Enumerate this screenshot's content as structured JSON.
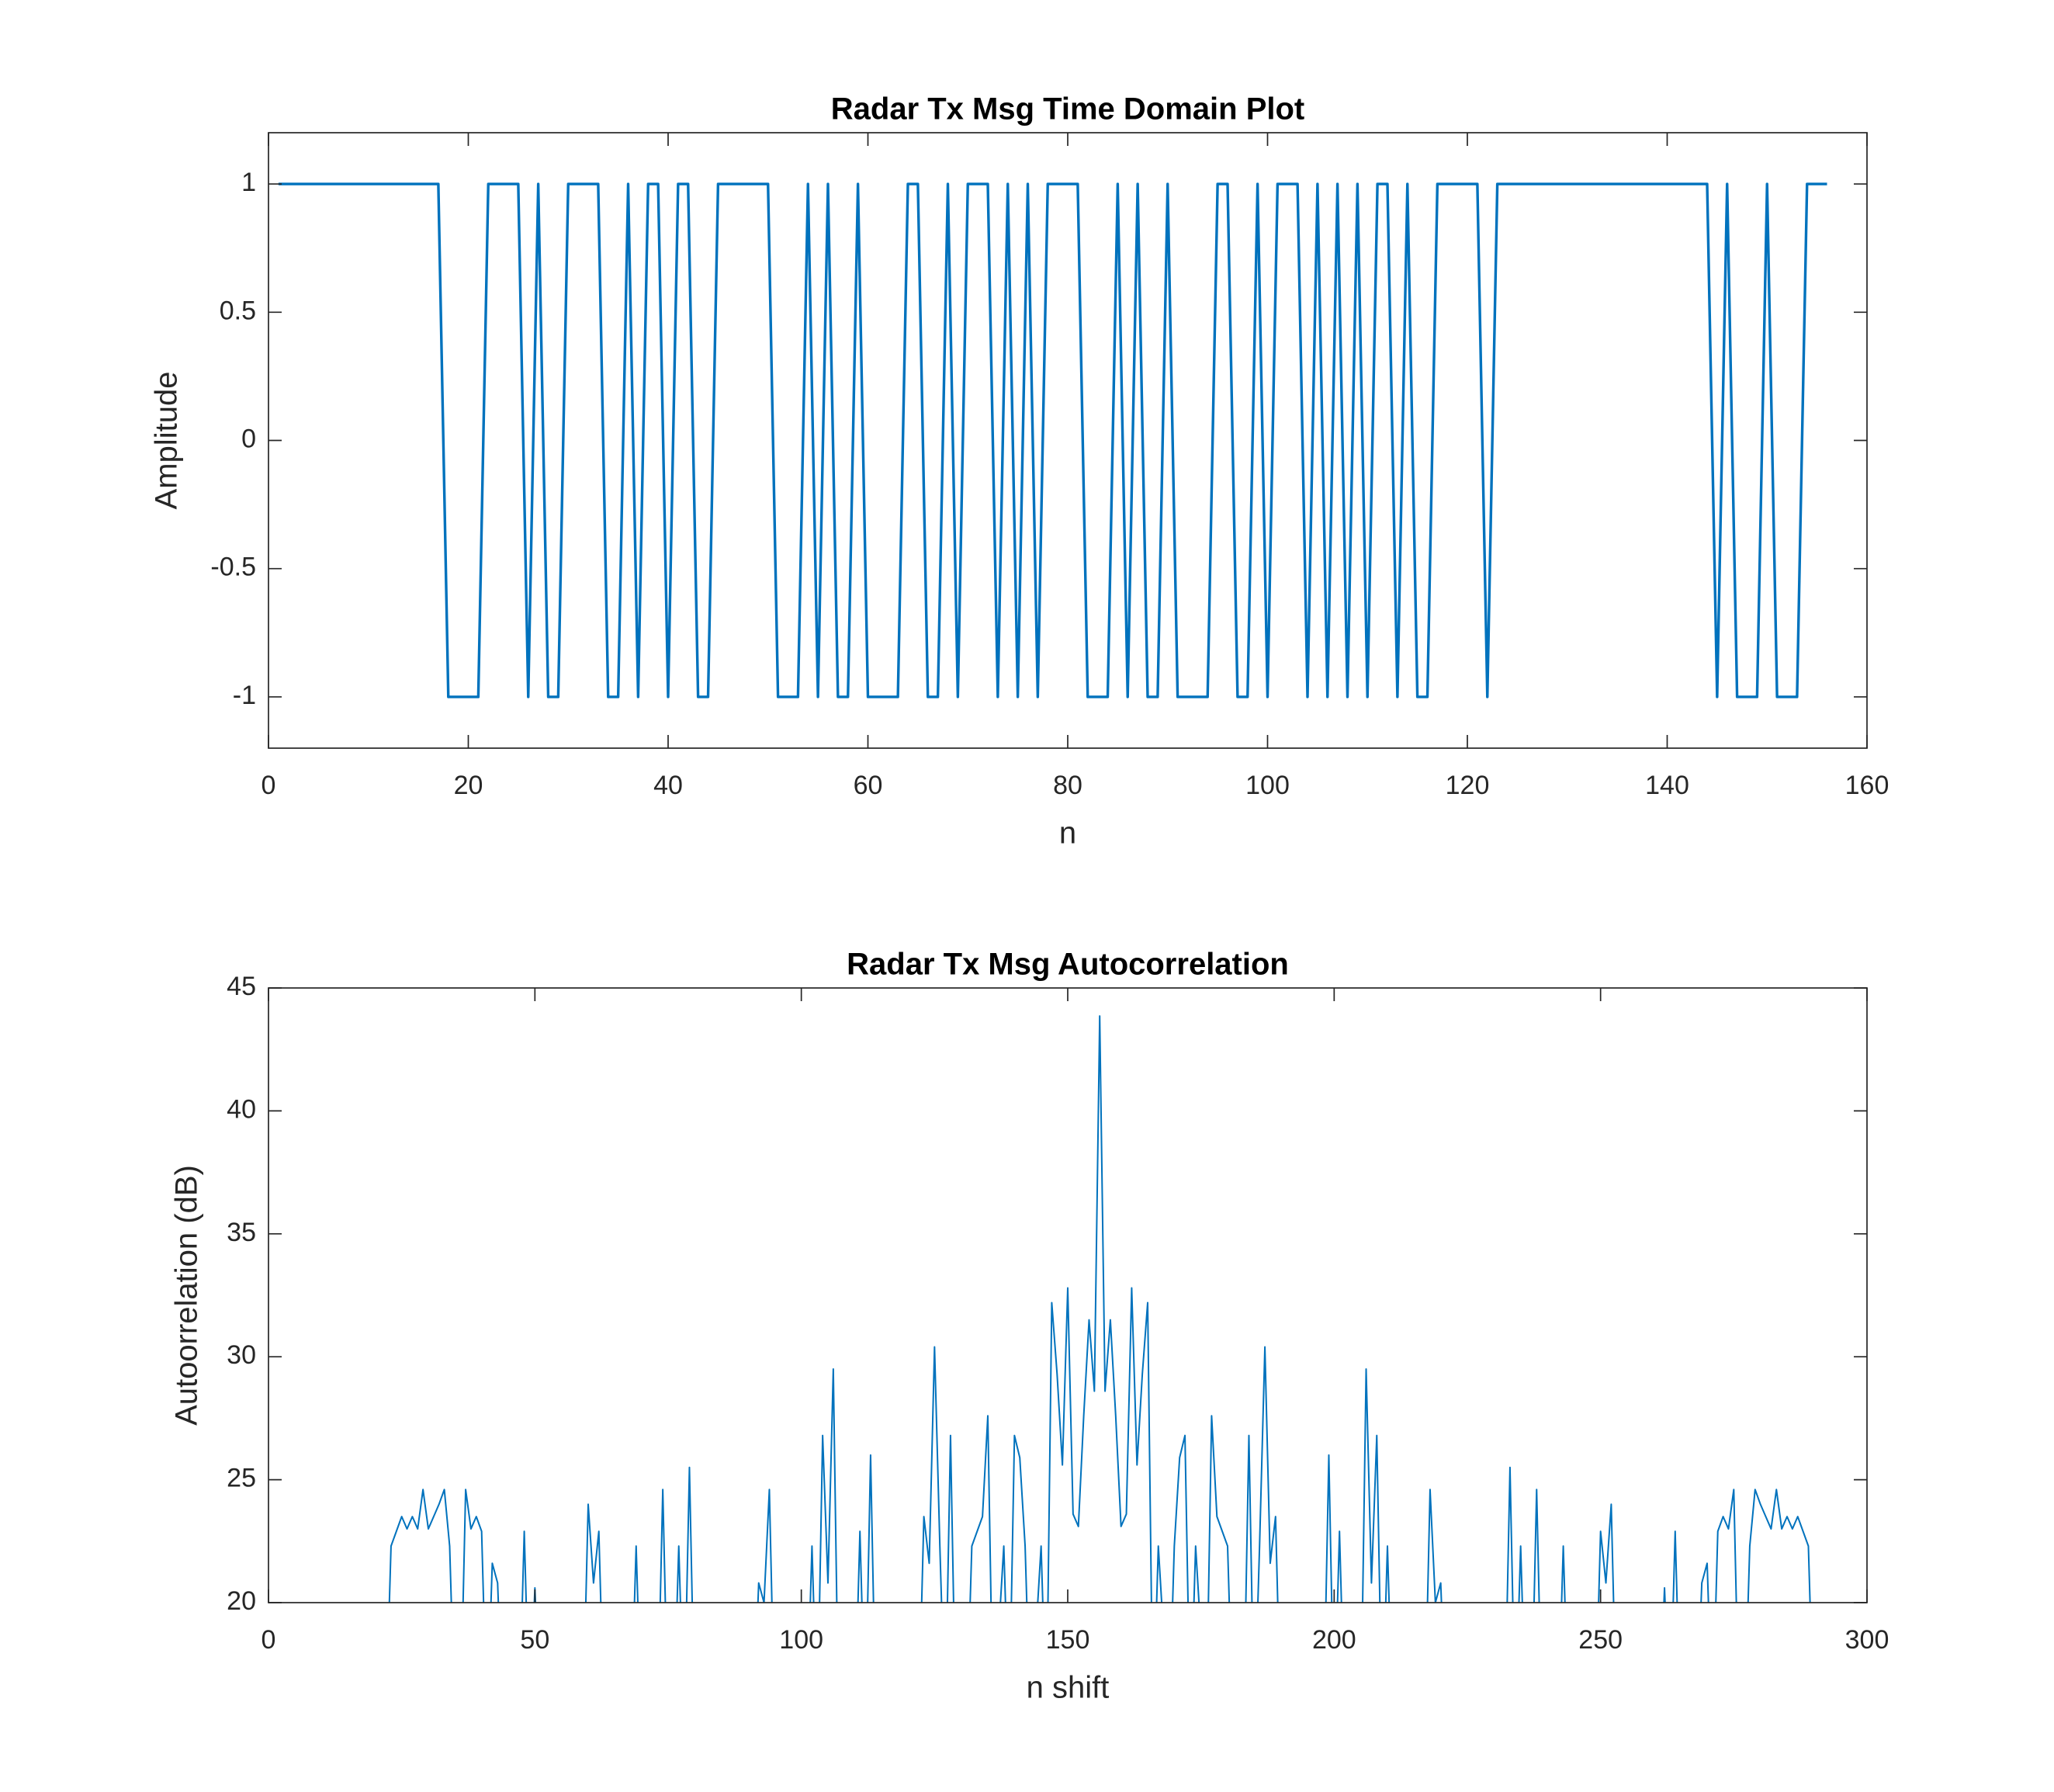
{
  "chart_data": [
    {
      "type": "line",
      "title": "Radar Tx Msg Time Domain Plot",
      "xlabel": "n",
      "ylabel": "Amplitude",
      "color": "#0072bd",
      "x": [
        1,
        2,
        3,
        4,
        5,
        6,
        7,
        8,
        9,
        10,
        11,
        12,
        13,
        14,
        15,
        16,
        17,
        18,
        19,
        20,
        21,
        22,
        23,
        24,
        25,
        26,
        27,
        28,
        29,
        30,
        31,
        32,
        33,
        34,
        35,
        36,
        37,
        38,
        39,
        40,
        41,
        42,
        43,
        44,
        45,
        46,
        47,
        48,
        49,
        50,
        51,
        52,
        53,
        54,
        55,
        56,
        57,
        58,
        59,
        60,
        61,
        62,
        63,
        64,
        65,
        66,
        67,
        68,
        69,
        70,
        71,
        72,
        73,
        74,
        75,
        76,
        77,
        78,
        79,
        80,
        81,
        82,
        83,
        84,
        85,
        86,
        87,
        88,
        89,
        90,
        91,
        92,
        93,
        94,
        95,
        96,
        97,
        98,
        99,
        100,
        101,
        102,
        103,
        104,
        105,
        106,
        107,
        108,
        109,
        110,
        111,
        112,
        113,
        114,
        115,
        116,
        117,
        118,
        119,
        120,
        121,
        122,
        123,
        124,
        125,
        126,
        127,
        128,
        129,
        130,
        131,
        132,
        133,
        134,
        135,
        136,
        137,
        138,
        139,
        140,
        141,
        142,
        143,
        144,
        145,
        146,
        147,
        148,
        149,
        150,
        151,
        152,
        153,
        154,
        155,
        156
      ],
      "values": [
        1,
        1,
        1,
        1,
        1,
        1,
        1,
        1,
        1,
        1,
        1,
        1,
        1,
        1,
        1,
        1,
        1,
        -1,
        -1,
        -1,
        -1,
        1,
        1,
        1,
        1,
        -1,
        1,
        -1,
        -1,
        1,
        1,
        1,
        1,
        -1,
        -1,
        1,
        -1,
        1,
        1,
        -1,
        1,
        1,
        -1,
        -1,
        1,
        1,
        1,
        1,
        1,
        1,
        -1,
        -1,
        -1,
        1,
        -1,
        1,
        -1,
        -1,
        1,
        -1,
        -1,
        -1,
        -1,
        1,
        1,
        -1,
        -1,
        1,
        -1,
        1,
        1,
        1,
        -1,
        1,
        -1,
        1,
        -1,
        1,
        1,
        1,
        1,
        -1,
        -1,
        -1,
        1,
        -1,
        1,
        -1,
        -1,
        1,
        -1,
        -1,
        -1,
        -1,
        1,
        1,
        -1,
        -1,
        1,
        -1,
        1,
        1,
        1,
        -1,
        1,
        -1,
        1,
        -1,
        1,
        -1,
        1,
        1,
        -1,
        1,
        -1,
        -1,
        1,
        1,
        1,
        1,
        1,
        -1,
        1,
        1,
        1,
        1,
        1,
        1,
        1,
        1,
        1,
        1,
        1,
        1,
        1,
        1,
        1,
        1,
        1,
        1,
        1,
        1,
        1,
        1,
        -1,
        1,
        -1,
        -1,
        -1,
        1,
        -1,
        -1,
        -1,
        1,
        1,
        1
      ],
      "xlim": [
        0,
        160
      ],
      "ylim": [
        -1.2,
        1.2
      ],
      "xticks": [
        0,
        20,
        40,
        60,
        80,
        100,
        120,
        140,
        160
      ],
      "yticks": [
        -1,
        -0.5,
        0,
        0.5,
        1
      ]
    },
    {
      "type": "line",
      "title": "Radar Tx Msg Autocorrelation",
      "xlabel": "n shift",
      "ylabel": "Autoorrelation (dB)",
      "color": "#0072bd",
      "x": [
        22,
        23,
        24,
        25,
        26,
        27,
        28,
        29,
        30,
        31,
        32,
        33,
        34,
        35,
        36,
        37,
        38,
        39,
        40,
        41,
        42,
        43,
        44,
        47,
        48,
        49,
        50,
        51,
        59,
        60,
        61,
        62,
        63,
        68,
        69,
        70,
        73,
        74,
        75,
        76,
        77,
        78,
        79,
        80,
        91,
        92,
        93,
        94,
        95,
        101,
        102,
        103,
        104,
        105,
        106,
        107,
        110,
        111,
        112,
        113,
        114,
        122,
        123,
        124,
        125,
        126,
        127,
        128,
        129,
        131,
        132,
        134,
        135,
        136,
        138,
        139,
        140,
        141,
        142,
        143,
        145,
        146,
        147,
        148,
        149,
        150,
        151,
        152,
        153,
        154,
        155,
        156,
        157,
        158,
        159,
        160,
        161,
        162,
        163,
        164,
        165,
        166,
        167,
        169,
        170,
        171,
        172,
        173,
        174,
        176,
        177,
        178,
        180,
        181,
        183,
        184,
        185,
        186,
        187,
        188,
        189,
        190,
        198,
        199,
        200,
        201,
        202,
        205,
        206,
        207,
        208,
        209,
        210,
        211,
        217,
        218,
        219,
        220,
        221,
        232,
        233,
        234,
        235,
        236,
        237,
        238,
        239,
        242,
        243,
        244,
        249,
        250,
        251,
        252,
        253,
        261,
        262,
        263,
        264,
        265,
        268,
        269,
        270,
        271,
        272,
        273,
        274,
        275,
        276,
        277,
        278,
        279,
        280,
        281,
        282,
        283,
        284,
        285,
        286,
        287,
        288,
        289,
        290
      ],
      "values": [
        15,
        22.3,
        22.9,
        23.5,
        23.0,
        23.5,
        23.0,
        24.6,
        23.0,
        23.5,
        24.0,
        24.6,
        22.3,
        15,
        15,
        24.6,
        23.0,
        23.5,
        22.9,
        15,
        21.6,
        20.8,
        15,
        15,
        22.9,
        15,
        20.6,
        15,
        15,
        24.0,
        20.8,
        22.9,
        15,
        15,
        22.3,
        15,
        15,
        24.6,
        15,
        15,
        22.3,
        15,
        25.5,
        15,
        15,
        20.8,
        20.0,
        24.6,
        15,
        15,
        22.3,
        15,
        26.8,
        20.8,
        29.5,
        15,
        15,
        22.9,
        15,
        26.0,
        15,
        15,
        23.5,
        21.6,
        30.4,
        22.3,
        15,
        26.8,
        15,
        15,
        22.3,
        23.5,
        27.6,
        15,
        22.3,
        15,
        26.8,
        25.9,
        22.3,
        15,
        22.3,
        15,
        32.2,
        29.3,
        25.6,
        32.8,
        23.6,
        23.1,
        27.6,
        31.5,
        28.6,
        43.86,
        28.6,
        31.5,
        27.6,
        23.1,
        23.6,
        32.8,
        25.6,
        29.3,
        32.2,
        15,
        22.3,
        15,
        22.3,
        25.9,
        26.8,
        15,
        22.3,
        15,
        27.6,
        23.5,
        22.3,
        15,
        15,
        26.8,
        15,
        22.3,
        30.4,
        21.6,
        23.5,
        15,
        15,
        26.0,
        15,
        22.9,
        15,
        15,
        29.5,
        20.8,
        26.8,
        15,
        22.3,
        15,
        15,
        24.6,
        20.0,
        20.8,
        15,
        15,
        25.5,
        15,
        22.3,
        15,
        15,
        24.6,
        15,
        15,
        22.3,
        15,
        15,
        22.9,
        20.8,
        24.0,
        15,
        15,
        20.6,
        15,
        22.9,
        15,
        15,
        20.8,
        21.6,
        15,
        22.9,
        23.5,
        23.0,
        24.6,
        15,
        15,
        22.3,
        24.6,
        24.0,
        23.5,
        23.0,
        24.6,
        23.0,
        23.5,
        23.0,
        23.5,
        22.9,
        22.3,
        15
      ],
      "xlim": [
        0,
        300
      ],
      "ylim": [
        20,
        45
      ],
      "xticks": [
        0,
        50,
        100,
        150,
        200,
        250,
        300
      ],
      "yticks": [
        20,
        25,
        30,
        35,
        40,
        45
      ]
    }
  ]
}
